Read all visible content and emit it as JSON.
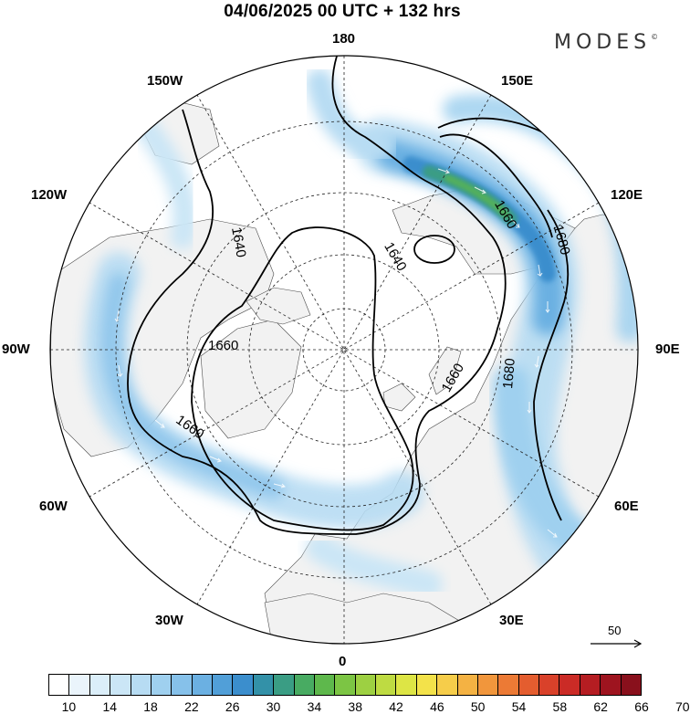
{
  "title": "04/06/2025  00 UTC  + 132 hrs",
  "logo": "MODES",
  "logo_mark": "©",
  "longitude_labels": {
    "n180": "180",
    "e150": "150E",
    "e120": "120E",
    "e90": "90E",
    "e60": "60E",
    "e30": "30E",
    "s0": "0",
    "w30": "30W",
    "w60": "60W",
    "w90": "90W",
    "w120": "120W",
    "w150": "150W"
  },
  "contours": [
    {
      "label": "1640",
      "kind": "inner-ring"
    },
    {
      "label": "1660",
      "kind": "outer-ring"
    },
    {
      "label": "1680",
      "kind": "jet-core"
    }
  ],
  "contour_labels": [
    "1640",
    "1640",
    "1660",
    "1660",
    "1660",
    "1660",
    "1680",
    "1680"
  ],
  "reference_vector": {
    "label": "50"
  },
  "colorbar": {
    "colors": [
      "#ffffff",
      "#eaf4fb",
      "#dbeef9",
      "#cbe6f6",
      "#b7dcf3",
      "#9fd0ef",
      "#86c1ea",
      "#6bb0e2",
      "#519fd8",
      "#3b8ecd",
      "#3391a8",
      "#3a9d84",
      "#48ab62",
      "#5eb84c",
      "#7cc544",
      "#9dd042",
      "#bedb42",
      "#dde545",
      "#f3e24a",
      "#f6cd4a",
      "#f4b243",
      "#f1963c",
      "#ec7a35",
      "#e45d2f",
      "#d9412a",
      "#cb2b26",
      "#b51d22",
      "#9e141f",
      "#89101c"
    ],
    "tick_labels": [
      "10",
      "14",
      "18",
      "22",
      "26",
      "30",
      "34",
      "38",
      "42",
      "46",
      "50",
      "54",
      "58",
      "62",
      "66",
      "70"
    ]
  }
}
